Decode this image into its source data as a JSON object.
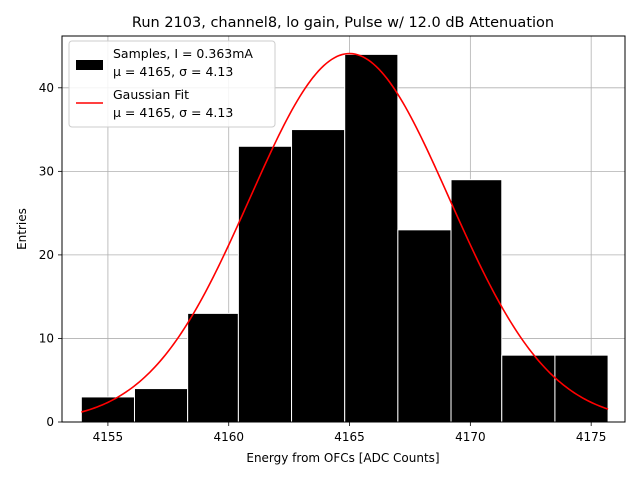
{
  "chart_data": {
    "type": "bar",
    "title": "Run 2103, channel8, lo gain, Pulse w/ 12.0 dB Attenuation",
    "xlabel": "Energy from OFCs [ADC Counts]",
    "ylabel": "Entries",
    "xlim": [
      4153.1,
      4176.4
    ],
    "ylim": [
      0,
      46.2
    ],
    "xticks": [
      4155,
      4160,
      4165,
      4170,
      4175
    ],
    "yticks": [
      0,
      10,
      20,
      30,
      40
    ],
    "grid": true,
    "legend_position": "top-left",
    "bar_color": "#000000",
    "fit_color": "#ff0000",
    "histogram": {
      "bin_edges": [
        4153.9,
        4156.1,
        4158.3,
        4160.4,
        4162.6,
        4164.8,
        4167.0,
        4169.2,
        4171.3,
        4173.5,
        4175.7
      ],
      "counts": [
        3,
        4,
        13,
        33,
        35,
        44,
        23,
        29,
        8,
        8
      ]
    },
    "fit": {
      "mu": 4165,
      "sigma": 4.13,
      "amplitude": 44.1
    },
    "legend": [
      {
        "line1": "Samples, I = 0.363mA",
        "line2_prefix": "μ = 4165, ",
        "line2_suffix": "σ = 4.13"
      },
      {
        "line1": "Gaussian Fit",
        "line2_prefix": "μ = 4165, ",
        "line2_suffix": "σ = 4.13"
      }
    ]
  }
}
